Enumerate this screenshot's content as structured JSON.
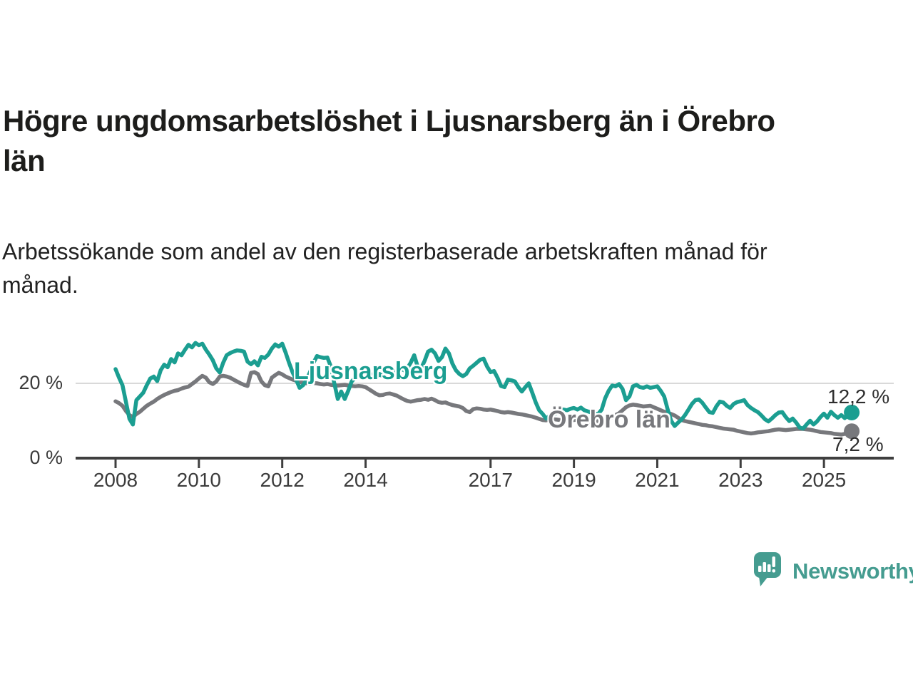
{
  "title": {
    "line1": "Högre ungdomsarbetslöshet i Ljusnarsberg än i Örebro",
    "line2": "län"
  },
  "subtitle": {
    "line1": "Arbetssökande som andel av den registerbaserade arbetskraften månad för",
    "line2": "månad."
  },
  "branding": {
    "name": "Newsworthy",
    "logo_icon": "speech-bubble-bar-chart-icon",
    "color": "#459c90"
  },
  "colors": {
    "ljusnarsberg": "#1b9e91",
    "orebro": "#77787c",
    "gridline": "#d9d9d9",
    "axis": "#3f3f3f",
    "text": "#3c3c3c"
  },
  "chart_data": {
    "type": "line",
    "title": "Högre ungdomsarbetslöshet i Ljusnarsberg än i Örebro län",
    "subtitle": "Arbetssökande som andel av den registerbaserade arbetskraften månad för månad.",
    "unit": "%",
    "x_start_year": 2008,
    "x_resolution": "monthly",
    "x_end_label_period": "2025 (september)",
    "x_tick_years": [
      2008,
      2010,
      2012,
      2014,
      2017,
      2019,
      2021,
      2023,
      2025
    ],
    "y_axis": {
      "ticks": [
        {
          "label": "20 %",
          "value": 20
        },
        {
          "label": "0 %",
          "value": 0
        }
      ],
      "gridline_values": [
        20
      ],
      "range": [
        0,
        33
      ]
    },
    "legend_position": "inline-labels-on-lines",
    "grid": "horizontal-only",
    "series": [
      {
        "name": "Ljusnarsberg",
        "color": "#1b9e91",
        "end_label": "12,2 %",
        "end_value": 12.2,
        "values_monthly_from_2008_01": [
          23.8,
          21.5,
          19.5,
          15.0,
          10.5,
          9.0,
          15.5,
          16.5,
          17.5,
          19.5,
          21.3,
          21.8,
          20.6,
          23.5,
          25.0,
          24.3,
          26.5,
          25.6,
          28.0,
          27.5,
          29.0,
          30.3,
          29.6,
          30.8,
          30.2,
          30.6,
          29.0,
          27.7,
          26.2,
          24.0,
          22.9,
          25.5,
          27.5,
          28.1,
          28.5,
          28.8,
          28.7,
          28.5,
          25.8,
          25.1,
          25.9,
          24.8,
          27.1,
          26.8,
          27.7,
          29.3,
          30.4,
          29.8,
          30.6,
          28.2,
          25.4,
          22.9,
          21.0,
          18.8,
          19.5,
          21.0,
          23.0,
          25.5,
          27.3,
          27.0,
          26.8,
          26.9,
          24.5,
          20.0,
          15.8,
          17.8,
          15.8,
          18.0,
          20.5,
          21.5,
          22.0,
          22.5,
          22.5,
          23.0,
          22.0,
          21.5,
          22.5,
          21.8,
          22.3,
          23.0,
          22.5,
          23.5,
          24.0,
          23.5,
          24.0,
          25.5,
          27.5,
          24.5,
          24.0,
          26.0,
          28.5,
          29.0,
          28.0,
          26.0,
          27.0,
          29.3,
          28.0,
          25.3,
          23.5,
          22.5,
          21.9,
          22.5,
          24.0,
          24.7,
          25.5,
          26.3,
          26.6,
          24.5,
          23.0,
          23.3,
          21.5,
          19.3,
          19.0,
          21.0,
          20.8,
          20.5,
          19.0,
          17.8,
          19.0,
          20.0,
          17.5,
          14.9,
          12.8,
          11.8,
          10.6,
          11.3,
          11.5,
          12.0,
          12.6,
          13.0,
          12.8,
          13.2,
          13.4,
          13.0,
          13.5,
          12.8,
          12.5,
          12.2,
          11.9,
          11.8,
          13.0,
          16.0,
          18.0,
          19.4,
          19.2,
          19.8,
          18.5,
          15.5,
          16.5,
          19.2,
          19.6,
          19.0,
          18.8,
          19.2,
          18.8,
          19.0,
          19.2,
          18.0,
          16.5,
          13.0,
          10.0,
          8.6,
          9.5,
          10.3,
          11.5,
          13.0,
          14.5,
          15.5,
          15.7,
          14.8,
          13.5,
          12.3,
          12.1,
          13.8,
          15.1,
          14.9,
          14.0,
          13.4,
          14.5,
          15.0,
          15.2,
          15.5,
          14.2,
          13.4,
          12.8,
          12.3,
          11.4,
          10.4,
          9.8,
          10.6,
          11.5,
          12.2,
          12.3,
          11.0,
          9.9,
          10.6,
          9.5,
          8.2,
          7.9,
          9.0,
          10.0,
          9.0,
          9.8,
          11.0,
          11.9,
          10.8,
          12.4,
          11.5,
          10.8,
          11.5,
          10.7,
          11.5,
          12.2
        ]
      },
      {
        "name": "Örebro län",
        "color": "#77787c",
        "end_label": "7,2 %",
        "end_value": 7.2,
        "values_monthly_from_2008_01": [
          15.2,
          14.7,
          14.0,
          12.6,
          11.5,
          11.0,
          11.8,
          12.4,
          13.2,
          14.0,
          14.6,
          15.1,
          15.8,
          16.4,
          16.9,
          17.3,
          17.7,
          18.0,
          18.2,
          18.6,
          18.9,
          19.1,
          19.8,
          20.5,
          21.3,
          22.0,
          21.5,
          20.3,
          19.8,
          20.5,
          21.8,
          22.0,
          21.8,
          21.5,
          21.0,
          20.5,
          20.0,
          19.6,
          19.3,
          22.8,
          23.0,
          22.5,
          20.5,
          19.5,
          19.2,
          21.5,
          22.2,
          22.8,
          22.4,
          21.8,
          21.4,
          21.0,
          20.7,
          20.4,
          20.2,
          20.0,
          19.9,
          20.1,
          20.0,
          19.8,
          19.7,
          19.8,
          19.6,
          19.5,
          19.4,
          19.5,
          19.6,
          19.4,
          19.3,
          19.2,
          19.3,
          19.2,
          19.0,
          18.4,
          17.8,
          17.2,
          16.8,
          16.9,
          17.2,
          17.3,
          17.0,
          16.7,
          16.2,
          15.7,
          15.3,
          15.1,
          15.3,
          15.5,
          15.6,
          15.8,
          15.6,
          15.9,
          15.5,
          15.0,
          14.8,
          14.9,
          14.5,
          14.2,
          14.0,
          13.8,
          13.4,
          12.6,
          12.3,
          13.1,
          13.3,
          13.2,
          13.0,
          12.9,
          13.0,
          12.8,
          12.6,
          12.3,
          12.2,
          12.3,
          12.2,
          12.0,
          11.8,
          11.7,
          11.5,
          11.3,
          11.1,
          10.8,
          10.5,
          10.2,
          10.1,
          10.3,
          10.4,
          10.3,
          10.2,
          10.1,
          10.0,
          10.1,
          10.2,
          10.3,
          10.2,
          10.1,
          9.9,
          9.7,
          9.8,
          9.9,
          10.0,
          10.2,
          10.5,
          11.0,
          11.5,
          12.0,
          12.8,
          13.6,
          14.1,
          14.3,
          14.2,
          14.0,
          13.8,
          13.9,
          14.0,
          13.6,
          13.2,
          12.8,
          12.4,
          12.1,
          11.8,
          11.4,
          10.8,
          10.2,
          9.9,
          9.7,
          9.5,
          9.3,
          9.1,
          8.9,
          8.8,
          8.6,
          8.5,
          8.3,
          8.1,
          7.9,
          7.8,
          7.7,
          7.6,
          7.3,
          7.1,
          6.9,
          6.7,
          6.6,
          6.7,
          6.9,
          7.0,
          7.1,
          7.2,
          7.4,
          7.6,
          7.7,
          7.6,
          7.5,
          7.6,
          7.7,
          7.8,
          7.8,
          7.8,
          7.7,
          7.6,
          7.4,
          7.2,
          7.0,
          6.9,
          6.8,
          6.7,
          6.5,
          6.4,
          6.3,
          6.5,
          6.9,
          7.2
        ]
      }
    ]
  }
}
